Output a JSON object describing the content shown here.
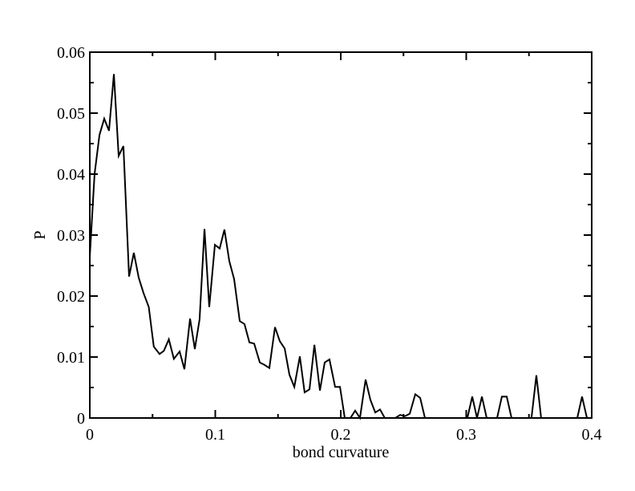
{
  "chart_data": {
    "type": "line",
    "x_label": "bond curvature",
    "y_label": "P",
    "xlim": [
      0,
      0.4
    ],
    "ylim": [
      0,
      0.06
    ],
    "xticks": [
      0,
      0.1,
      0.2,
      0.3,
      0.4
    ],
    "yticks": [
      0,
      0.01,
      0.02,
      0.03,
      0.04,
      0.05,
      0.06
    ],
    "xminorticks": [
      0.05,
      0.15,
      0.25,
      0.35
    ],
    "yminorticks": [
      0.005,
      0.015,
      0.025,
      0.035,
      0.045,
      0.055
    ],
    "color": "#000000",
    "x": [
      0,
      0.0038,
      0.0077,
      0.0115,
      0.0153,
      0.0192,
      0.023,
      0.0268,
      0.0313,
      0.0351,
      0.039,
      0.0428,
      0.047,
      0.051,
      0.0556,
      0.059,
      0.063,
      0.067,
      0.0716,
      0.0754,
      0.0799,
      0.0837,
      0.0875,
      0.0914,
      0.0952,
      0.0997,
      0.1035,
      0.1073,
      0.1112,
      0.115,
      0.1195,
      0.1233,
      0.1272,
      0.131,
      0.1355,
      0.1393,
      0.1431,
      0.1476,
      0.1514,
      0.1553,
      0.1591,
      0.163,
      0.1674,
      0.1712,
      0.1751,
      0.179,
      0.1834,
      0.1872,
      0.191,
      0.1955,
      0.1994,
      0.2032,
      0.2077,
      0.2115,
      0.2153,
      0.2198,
      0.2236,
      0.2275,
      0.2313,
      0.2351,
      0.2435,
      0.2473,
      0.2511,
      0.255,
      0.2594,
      0.2633,
      0.2671,
      0.3009,
      0.3048,
      0.3086,
      0.3125,
      0.3163,
      0.3246,
      0.3284,
      0.3323,
      0.3361,
      0.34,
      0.352,
      0.3559,
      0.3597,
      0.3885,
      0.3923,
      0.3962,
      0.4
    ],
    "values": [
      0.0265,
      0.04,
      0.0464,
      0.0491,
      0.0471,
      0.0564,
      0.043,
      0.0446,
      0.0232,
      0.0271,
      0.023,
      0.0205,
      0.0182,
      0.0117,
      0.0105,
      0.011,
      0.0129,
      0.0097,
      0.0109,
      0.008,
      0.0163,
      0.0113,
      0.0162,
      0.031,
      0.0182,
      0.0284,
      0.0278,
      0.0309,
      0.0257,
      0.0228,
      0.0159,
      0.0154,
      0.0124,
      0.0122,
      0.0091,
      0.0087,
      0.0082,
      0.0149,
      0.0126,
      0.0114,
      0.0071,
      0.0051,
      0.0101,
      0.0042,
      0.0047,
      0.012,
      0.0045,
      0.0091,
      0.0096,
      0.0051,
      0.0051,
      0,
      0,
      0.0012,
      0,
      0.0063,
      0.003,
      0.0009,
      0.0014,
      0,
      0,
      0.0005,
      0.0003,
      0.0007,
      0.0039,
      0.0033,
      0,
      0,
      0.0035,
      0,
      0.0035,
      0,
      0,
      0.0035,
      0.0035,
      0,
      0,
      0,
      0.007,
      0,
      0,
      0.0035,
      0,
      0
    ]
  }
}
